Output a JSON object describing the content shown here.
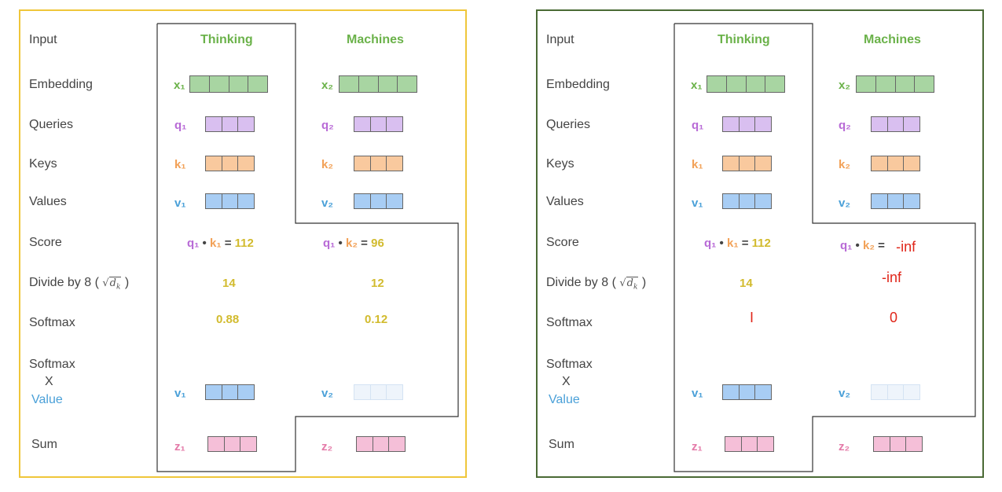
{
  "colors": {
    "green": "#a8d5a2",
    "purple": "#d9bff0",
    "orange": "#f9c99e",
    "blue": "#a8cdf4",
    "lightblue": "#eef4fb",
    "pink": "#f5bfd8",
    "word": "#6bb24a",
    "q": "#b86ad6",
    "k": "#f2a056",
    "v": "#4aa0d8",
    "z": "#e47aa8",
    "yellow": "#d2bb2e",
    "red": "#e0261a",
    "left_border": "#efc63a",
    "right_border": "#4a6a35"
  },
  "labels": {
    "input": "Input",
    "embedding": "Embedding",
    "queries": "Queries",
    "keys": "Keys",
    "values": "Values",
    "score": "Score",
    "divide": "Divide by 8 (",
    "divide_close": ")",
    "sqrt_sign": "√",
    "dk": "d",
    "dk_sub": "k",
    "softmax": "Softmax",
    "softmax2": "Softmax",
    "x": "X",
    "value": "Value",
    "sum": "Sum"
  },
  "words": {
    "w1": "Thinking",
    "w2": "Machines"
  },
  "vectors": {
    "x1": "x₁",
    "x2": "x₂",
    "q1": "q₁",
    "q2": "q₂",
    "k1": "k₁",
    "k2": "k₂",
    "v1": "v₁",
    "v2": "v₂",
    "z1": "z₁",
    "z2": "z₂"
  },
  "score_parts": {
    "dot": "•",
    "eq": "="
  },
  "left": {
    "score1": "112",
    "score2": "96",
    "div1": "14",
    "div2": "12",
    "soft1": "0.88",
    "soft2": "0.12"
  },
  "right": {
    "score1": "112",
    "score2": "-inf",
    "div1": "14",
    "div2": "-inf",
    "soft1": "I",
    "soft2": "0"
  }
}
